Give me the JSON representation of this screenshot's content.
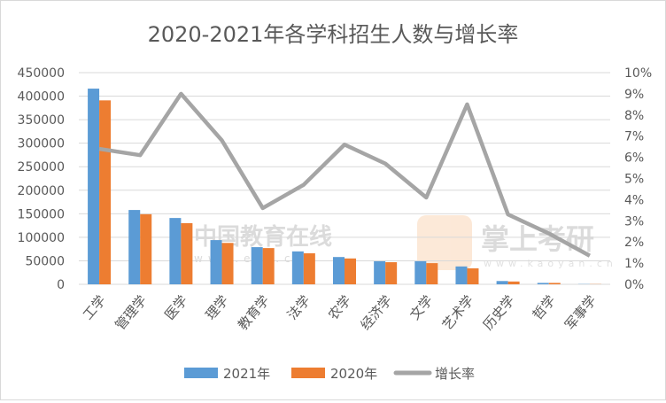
{
  "chart_data": {
    "type": "bar",
    "title": "2020-2021年各学科招生人数与增长率",
    "categories": [
      "工学",
      "管理学",
      "医学",
      "理学",
      "教育学",
      "法学",
      "农学",
      "经济学",
      "文学",
      "艺术学",
      "历史学",
      "哲学",
      "军事学"
    ],
    "series": [
      {
        "name": "2021年",
        "type": "bar",
        "axis": "left",
        "color": "#5b9bd5",
        "values": [
          416000,
          158000,
          141000,
          94000,
          79000,
          70000,
          58000,
          49000,
          49000,
          38000,
          7000,
          3000,
          500
        ]
      },
      {
        "name": "2020年",
        "type": "bar",
        "axis": "left",
        "color": "#ed7d31",
        "values": [
          391000,
          149000,
          130000,
          88000,
          77000,
          66000,
          55000,
          47000,
          45000,
          34000,
          6000,
          3000,
          450
        ]
      },
      {
        "name": "增长率",
        "type": "line",
        "axis": "right",
        "color": "#a5a5a5",
        "values": [
          6.4,
          6.1,
          9.0,
          6.8,
          3.6,
          4.7,
          6.6,
          5.7,
          4.1,
          8.5,
          3.3,
          2.4,
          1.35
        ]
      }
    ],
    "y_left": {
      "ylim": [
        0,
        450000
      ],
      "ticks": [
        "0",
        "50000",
        "100000",
        "150000",
        "200000",
        "250000",
        "300000",
        "350000",
        "400000",
        "450000"
      ]
    },
    "y_right": {
      "ylim": [
        0,
        10
      ],
      "ticks": [
        "0%",
        "1%",
        "2%",
        "3%",
        "4%",
        "5%",
        "6%",
        "7%",
        "8%",
        "9%",
        "10%"
      ]
    },
    "grid": true,
    "legend": "bottom",
    "watermarks": [
      "中国教育在线",
      "www.eol.cn",
      "掌上考研",
      "www.kaoyan.cn"
    ]
  }
}
